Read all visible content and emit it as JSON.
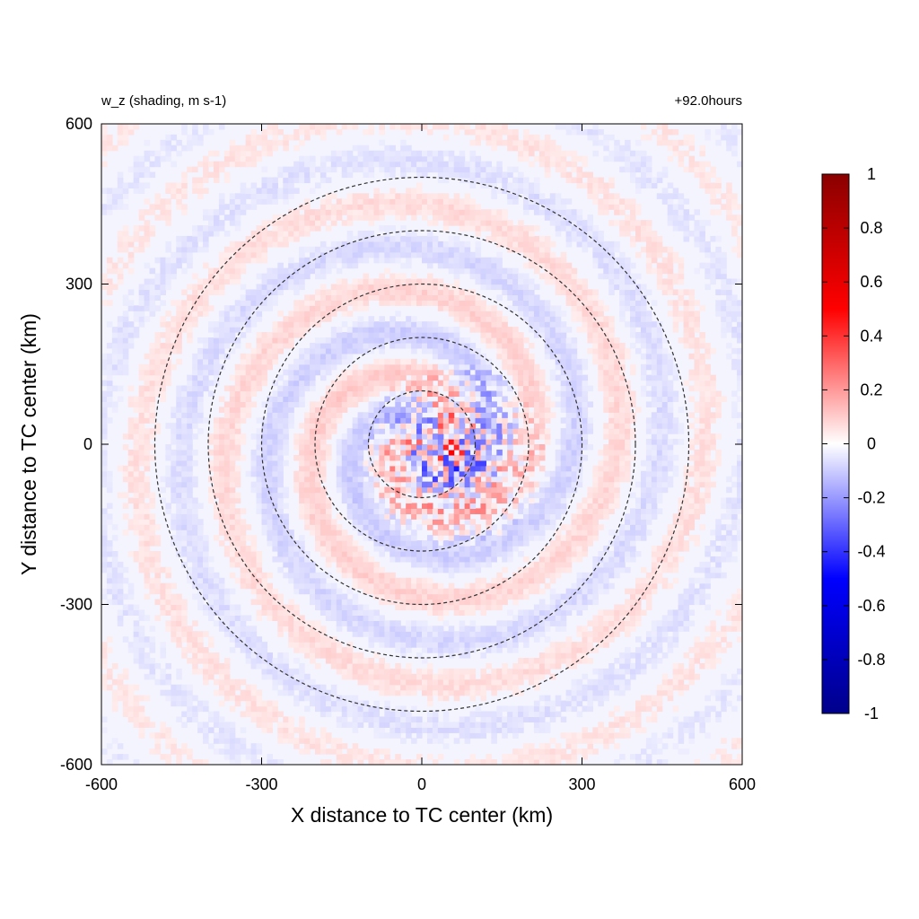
{
  "chart_data": {
    "type": "heatmap",
    "title_left": "w_z (shading, m s-1)",
    "title_right": "+92.0hours",
    "xlabel": "X distance to TC center (km)",
    "ylabel": "Y distance to TC center (km)",
    "xlim": [
      -600,
      600
    ],
    "ylim": [
      -600,
      600
    ],
    "x_ticks": [
      -600,
      -300,
      0,
      300,
      600
    ],
    "y_ticks": [
      -600,
      -300,
      0,
      300,
      600
    ],
    "x_tick_labels": [
      "-600",
      "-300",
      "0",
      "300",
      "600"
    ],
    "y_tick_labels": [
      "-600",
      "-300",
      "0",
      "300",
      "600"
    ],
    "colorbar": {
      "min": -1,
      "max": 1,
      "ticks": [
        -1,
        -0.8,
        -0.6,
        -0.4,
        -0.2,
        0,
        0.2,
        0.4,
        0.6,
        0.8,
        1
      ],
      "tick_labels": [
        "-1",
        "-0.8",
        "-0.6",
        "-0.4",
        "-0.2",
        "0",
        "0.2",
        "0.4",
        "0.6",
        "0.8",
        "1"
      ],
      "colors": [
        "#00008b",
        "#0000ff",
        "#ffffff",
        "#ff0000",
        "#8b0000"
      ]
    },
    "range_circles_km": [
      100,
      200,
      300,
      400,
      500
    ],
    "grid": false,
    "legend": "colorbar-right"
  }
}
